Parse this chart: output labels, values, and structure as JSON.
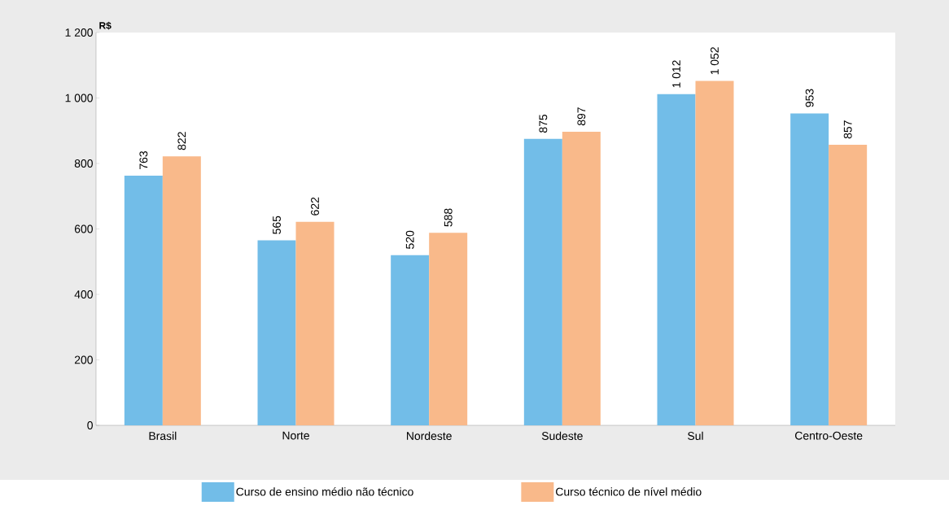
{
  "chart_data": {
    "type": "bar",
    "ylabel": "R$",
    "categories": [
      "Brasil",
      "Norte",
      "Nordeste",
      "Sudeste",
      "Sul",
      "Centro-Oeste"
    ],
    "series": [
      {
        "name": "Curso de ensino médio não técnico",
        "color": "#72bde8",
        "values": [
          763,
          565,
          520,
          875,
          1012,
          953
        ],
        "value_labels": [
          "763",
          "565",
          "520",
          "875",
          "1 012",
          "953"
        ]
      },
      {
        "name": "Curso técnico de nível médio",
        "color": "#f9b98a",
        "values": [
          822,
          622,
          588,
          897,
          1052,
          857
        ],
        "value_labels": [
          "822",
          "622",
          "588",
          "897",
          "1 052",
          "857"
        ]
      }
    ],
    "ylim": [
      0,
      1200
    ],
    "yticks": [
      0,
      200,
      400,
      600,
      800,
      {
        "value": 1000,
        "label": "1 000"
      },
      {
        "value": 1200,
        "label": "1 200"
      }
    ],
    "legend": "bottom"
  }
}
